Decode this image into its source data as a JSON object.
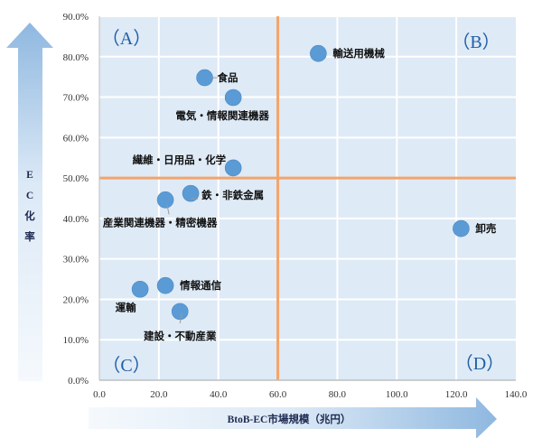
{
  "chart_data": {
    "type": "scatter",
    "title": "",
    "xlabel": "BtoB-EC市場規模（兆円）",
    "ylabel": "EC化率",
    "xlim": [
      0,
      140
    ],
    "ylim": [
      0,
      90
    ],
    "x_ticks": [
      "0.0",
      "20.0",
      "40.0",
      "60.0",
      "80.0",
      "100.0",
      "120.0",
      "140.0"
    ],
    "y_ticks": [
      "0.0%",
      "10.0%",
      "20.0%",
      "30.0%",
      "40.0%",
      "50.0%",
      "60.0%",
      "70.0%",
      "80.0%",
      "90.0%"
    ],
    "grid": true,
    "reference_lines": {
      "x": 60,
      "y": 50,
      "color": "#f4a46a"
    },
    "quadrants": [
      {
        "label": "（A）",
        "position": "top-left"
      },
      {
        "label": "（B）",
        "position": "top-right"
      },
      {
        "label": "（C）",
        "position": "bottom-left"
      },
      {
        "label": "（D）",
        "position": "bottom-right"
      }
    ],
    "points": [
      {
        "name": "食品",
        "x": 35.4,
        "y": 74.8
      },
      {
        "name": "電気・情報関連機器",
        "x": 45.0,
        "y": 69.9
      },
      {
        "name": "輸送用機械",
        "x": 73.6,
        "y": 80.8
      },
      {
        "name": "繊維・日用品・化学",
        "x": 45.0,
        "y": 52.5
      },
      {
        "name": "鉄・非鉄金属",
        "x": 30.7,
        "y": 46.2
      },
      {
        "name": "産業関連機器・精密機器",
        "x": 22.2,
        "y": 44.6
      },
      {
        "name": "卸売",
        "x": 121.6,
        "y": 37.5
      },
      {
        "name": "情報通信",
        "x": 22.2,
        "y": 23.4
      },
      {
        "name": "運輸",
        "x": 13.7,
        "y": 22.5
      },
      {
        "name": "建設・不動産業",
        "x": 27.1,
        "y": 17.0
      }
    ],
    "colors": {
      "point": "#5b9bd5",
      "plot_bg": "#deeaf6",
      "grid": "#ffffff",
      "reference": "#f4a46a",
      "quadrant_label": "#1f5fa8",
      "arrow": "#8fb8e0"
    }
  }
}
